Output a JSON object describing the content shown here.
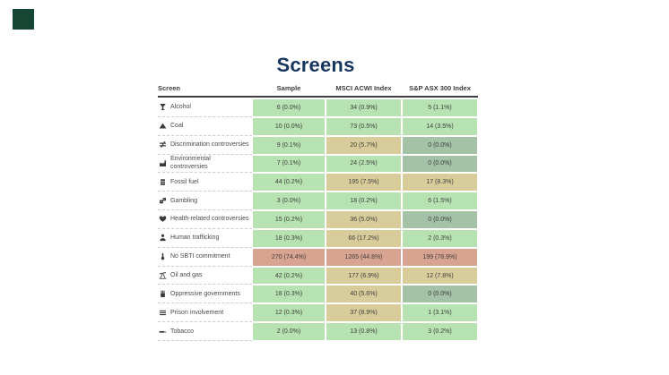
{
  "page": {
    "title": "Screens"
  },
  "colors": {
    "title_text": "#17355e",
    "logo_green": "#154734",
    "header_text": "#3c3c3c",
    "label_text": "#4a4a4a",
    "value_text": "#3e3e3e",
    "cell_green": "#b6e3b1",
    "cell_tan": "#d8cc9b",
    "cell_red": "#d8a491",
    "cell_sage": "#a4c2a5"
  },
  "chart_data": {
    "type": "table",
    "title": "Screens",
    "columns": [
      "Screen",
      "Sample",
      "MSCI ACWI Index",
      "S&P ASX 300 Index"
    ],
    "legend": "cell shading indicates exposure level (green = low, tan = elevated, red = high, sage = zero)",
    "rows": [
      {
        "icon": "cocktail-glass-icon",
        "screen": "Alcohol",
        "values": [
          "6 (0.0%)",
          "34 (0.9%)",
          "5 (1.1%)"
        ],
        "cell_colors": [
          "green",
          "green",
          "green"
        ]
      },
      {
        "icon": "coal-pile-icon",
        "screen": "Coal",
        "values": [
          "10 (0.0%)",
          "73 (0.5%)",
          "14 (3.5%)"
        ],
        "cell_colors": [
          "green",
          "green",
          "green"
        ]
      },
      {
        "icon": "not-equal-icon",
        "screen": "Discrimination controversies",
        "values": [
          "9 (0.1%)",
          "20 (5.7%)",
          "0 (0.0%)"
        ],
        "cell_colors": [
          "green",
          "tan",
          "sage"
        ]
      },
      {
        "icon": "factory-icon",
        "screen": "Environmental controversies",
        "values": [
          "7 (0.1%)",
          "24 (2.5%)",
          "0 (0.0%)"
        ],
        "cell_colors": [
          "green",
          "green",
          "sage"
        ]
      },
      {
        "icon": "oil-barrel-icon",
        "screen": "Fossil fuel",
        "values": [
          "44 (0.2%)",
          "195 (7.5%)",
          "17 (8.3%)"
        ],
        "cell_colors": [
          "green",
          "tan",
          "tan"
        ]
      },
      {
        "icon": "dice-icon",
        "screen": "Gambling",
        "values": [
          "3 (0.0%)",
          "18 (0.2%)",
          "6 (1.5%)"
        ],
        "cell_colors": [
          "green",
          "green",
          "green"
        ]
      },
      {
        "icon": "heart-icon",
        "screen": "Health-related controversies",
        "values": [
          "15 (0.2%)",
          "36 (5.0%)",
          "0 (0.0%)"
        ],
        "cell_colors": [
          "green",
          "tan",
          "sage"
        ]
      },
      {
        "icon": "person-icon",
        "screen": "Human trafficking",
        "values": [
          "18 (0.3%)",
          "66 (17.2%)",
          "2 (0.3%)"
        ],
        "cell_colors": [
          "green",
          "tan",
          "green"
        ]
      },
      {
        "icon": "thermometer-icon",
        "screen": "No SBTI commitment",
        "values": [
          "270 (74.4%)",
          "1265 (44.8%)",
          "199 (78.9%)"
        ],
        "cell_colors": [
          "red",
          "red",
          "red"
        ]
      },
      {
        "icon": "oil-pump-icon",
        "screen": "Oil and gas",
        "values": [
          "42 (0.2%)",
          "177 (6.9%)",
          "12 (7.8%)"
        ],
        "cell_colors": [
          "green",
          "tan",
          "tan"
        ]
      },
      {
        "icon": "fist-icon",
        "screen": "Oppressive governments",
        "values": [
          "18 (0.3%)",
          "40 (5.6%)",
          "0 (0.0%)"
        ],
        "cell_colors": [
          "green",
          "tan",
          "sage"
        ]
      },
      {
        "icon": "prison-bars-icon",
        "screen": "Prison involvement",
        "values": [
          "12 (0.3%)",
          "37 (8.9%)",
          "1 (3.1%)"
        ],
        "cell_colors": [
          "green",
          "tan",
          "green"
        ]
      },
      {
        "icon": "cigarette-icon",
        "screen": "Tobacco",
        "values": [
          "2 (0.0%)",
          "13 (0.8%)",
          "3 (0.2%)"
        ],
        "cell_colors": [
          "green",
          "green",
          "green"
        ]
      }
    ]
  }
}
